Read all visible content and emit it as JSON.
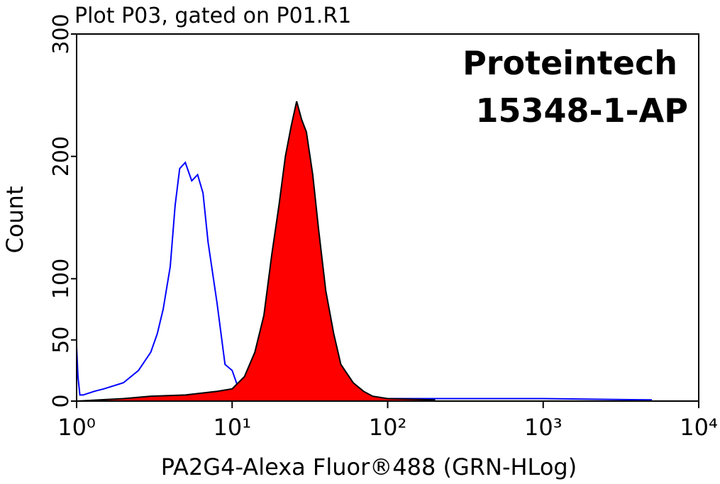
{
  "chart_data": {
    "type": "histogram-line",
    "title": "Plot P03, gated on P01.R1",
    "annotations": [
      "Proteintech",
      "15348-1-AP"
    ],
    "x_label": "PA2G4-Alexa Fluor®488 (GRN-HLog)",
    "y_label": "Count",
    "x_scale": "log",
    "xlim": [
      1,
      10000
    ],
    "xticks": [
      {
        "value": 1,
        "label": "10⁰"
      },
      {
        "value": 10,
        "label": "10¹"
      },
      {
        "value": 100,
        "label": "10²"
      },
      {
        "value": 1000,
        "label": "10³"
      },
      {
        "value": 10000,
        "label": "10⁴"
      }
    ],
    "ylim": [
      0,
      300
    ],
    "yticks": [
      0,
      50,
      100,
      200,
      300
    ],
    "series": [
      {
        "color": "#0000ff",
        "filled": false,
        "edgecolor": "#0000ff",
        "x": [
          1,
          1.02,
          1.05,
          1.1,
          1.3,
          1.5,
          2,
          2.5,
          3,
          3.3,
          3.6,
          4,
          4.3,
          4.6,
          5,
          5.5,
          6,
          6.5,
          7,
          8,
          9,
          10,
          11,
          13,
          20,
          50,
          100,
          1000,
          5000
        ],
        "values": [
          45,
          20,
          5,
          5,
          8,
          10,
          15,
          25,
          40,
          55,
          75,
          110,
          160,
          190,
          195,
          180,
          185,
          170,
          130,
          80,
          30,
          25,
          10,
          5,
          2,
          1,
          2,
          2,
          1
        ]
      },
      {
        "color": "#ff0000",
        "filled": true,
        "edgecolor": "#000000",
        "x": [
          1,
          2,
          3,
          5,
          8,
          10,
          12,
          14,
          16,
          18,
          20,
          22,
          24,
          26,
          28,
          30,
          33,
          36,
          40,
          45,
          50,
          60,
          70,
          80,
          100,
          200
        ],
        "values": [
          0,
          2,
          4,
          5,
          8,
          10,
          20,
          40,
          70,
          120,
          160,
          200,
          225,
          245,
          230,
          220,
          185,
          140,
          90,
          55,
          30,
          15,
          8,
          4,
          2,
          1
        ]
      }
    ]
  }
}
